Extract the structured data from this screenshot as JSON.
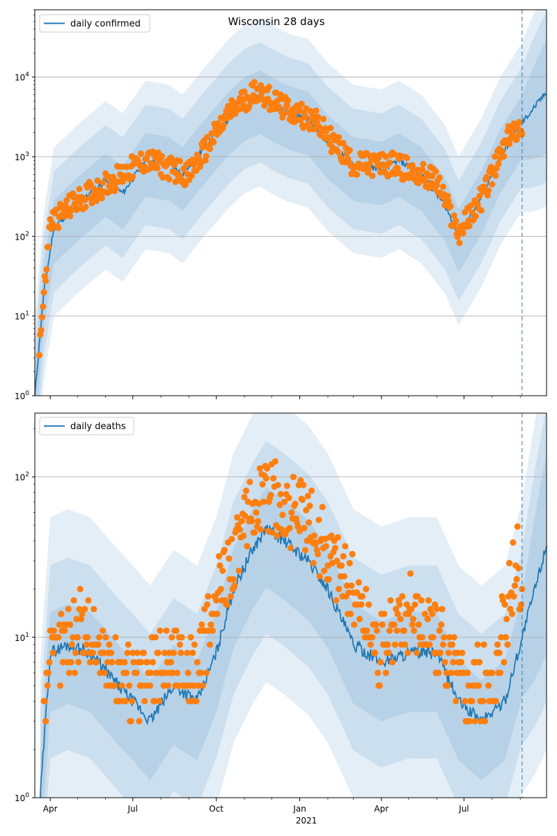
{
  "title": "Wisconsin 28 days",
  "colors": {
    "line": "#1f77b4",
    "points": "#ff7f0e",
    "band": "#1f77b4",
    "grid": "#b0b0b0",
    "vline": "#1f77b4"
  },
  "x_ticks": [
    "Apr",
    "Jul",
    "Oct",
    "Jan",
    "Apr",
    "Jul"
  ],
  "x_sublabel": "2021",
  "chart_data": [
    {
      "type": "line",
      "scale": "log",
      "title": "Wisconsin 28 days",
      "legend": [
        "daily confirmed"
      ],
      "legend_position": "top-left",
      "grid": true,
      "x_range": [
        "2020-03-15",
        "2021-09-30"
      ],
      "ylim": [
        1,
        70000
      ],
      "y_ticks": [
        "10^0",
        "10^1",
        "10^2",
        "10^3",
        "10^4"
      ],
      "forecast_start": "2021-09-03",
      "series": [
        {
          "name": "daily confirmed",
          "x": [
            "2020-03-15",
            "2020-03-25",
            "2020-04-05",
            "2020-05-01",
            "2020-06-01",
            "2020-06-20",
            "2020-07-15",
            "2020-08-10",
            "2020-08-25",
            "2020-09-15",
            "2020-10-15",
            "2020-11-01",
            "2020-11-18",
            "2020-12-01",
            "2020-12-20",
            "2021-01-10",
            "2021-02-01",
            "2021-03-01",
            "2021-04-01",
            "2021-04-20",
            "2021-05-15",
            "2021-06-10",
            "2021-06-25",
            "2021-07-20",
            "2021-08-10",
            "2021-09-01",
            "2021-09-30"
          ],
          "y": [
            1,
            20,
            130,
            250,
            500,
            350,
            900,
            800,
            600,
            1200,
            3000,
            4500,
            5500,
            4500,
            3500,
            3000,
            1500,
            800,
            700,
            900,
            600,
            250,
            100,
            300,
            1000,
            2500,
            6500
          ]
        },
        {
          "name": "",
          "x": [
            "2020-03-20",
            "2020-04-01",
            "2020-05-01",
            "2020-06-01",
            "2020-07-15",
            "2020-09-01",
            "2020-10-15",
            "2020-11-15",
            "2020-12-15",
            "2021-01-15",
            "2021-03-01",
            "2021-04-15",
            "2021-06-01",
            "2021-06-25",
            "2021-07-20",
            "2021-08-20",
            "2021-09-01"
          ],
          "y": [
            4,
            150,
            280,
            450,
            900,
            600,
            3500,
            7000,
            4000,
            3000,
            800,
            800,
            500,
            110,
            300,
            1800,
            2500
          ]
        }
      ]
    },
    {
      "type": "line",
      "scale": "log",
      "title": "",
      "legend": [
        "daily deaths"
      ],
      "legend_position": "top-left",
      "grid": true,
      "x_range": [
        "2020-03-15",
        "2021-09-30"
      ],
      "ylim": [
        1,
        250
      ],
      "y_ticks": [
        "10^0",
        "10^1",
        "10^2"
      ],
      "forecast_start": "2021-09-03",
      "series": [
        {
          "name": "daily deaths",
          "x": [
            "2020-03-21",
            "2020-04-01",
            "2020-04-20",
            "2020-05-15",
            "2020-06-15",
            "2020-07-01",
            "2020-07-20",
            "2020-08-15",
            "2020-09-10",
            "2020-10-01",
            "2020-10-20",
            "2020-11-10",
            "2020-11-25",
            "2020-12-15",
            "2021-01-10",
            "2021-02-01",
            "2021-03-01",
            "2021-04-01",
            "2021-05-01",
            "2021-06-01",
            "2021-06-25",
            "2021-07-20",
            "2021-08-15",
            "2021-09-01",
            "2021-09-30"
          ],
          "y": [
            1,
            8,
            9,
            8,
            5,
            4,
            3,
            5,
            4,
            8,
            20,
            35,
            48,
            40,
            30,
            20,
            9,
            7,
            8,
            8,
            4,
            3,
            4,
            9,
            38
          ]
        },
        {
          "name": "",
          "x": [
            "2020-03-25",
            "2020-04-15",
            "2020-05-10",
            "2020-06-10",
            "2020-07-10",
            "2020-08-10",
            "2020-09-10",
            "2020-10-10",
            "2020-11-01",
            "2020-11-20",
            "2020-12-10",
            "2021-01-05",
            "2021-02-01",
            "2021-03-01",
            "2021-04-01",
            "2021-05-01",
            "2021-06-01",
            "2021-07-01",
            "2021-08-01",
            "2021-08-30",
            "2021-09-02"
          ],
          "y": [
            5,
            10,
            12,
            6,
            5,
            8,
            6,
            25,
            45,
            80,
            70,
            55,
            35,
            20,
            8,
            15,
            10,
            5,
            5,
            33,
            12
          ]
        }
      ]
    }
  ]
}
